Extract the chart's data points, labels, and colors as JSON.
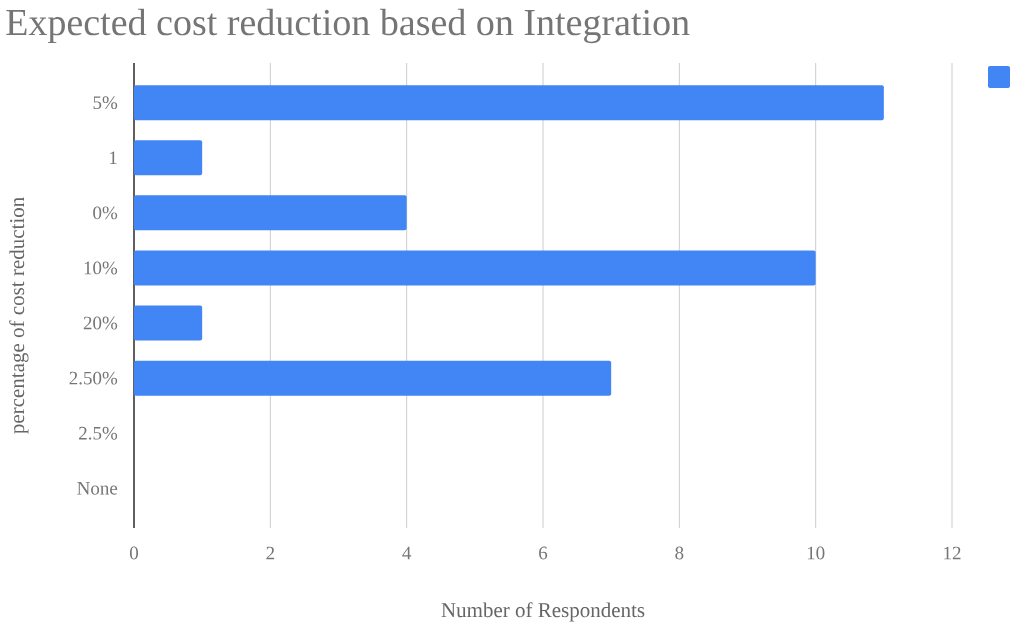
{
  "chart_data": {
    "type": "bar",
    "orientation": "horizontal",
    "title": "Expected cost reduction based on Integration",
    "xlabel": "Number of Respondents",
    "ylabel": "percentage of cost reduction",
    "categories": [
      "5%",
      "1",
      "0%",
      "10%",
      "20%",
      "2.50%",
      "2.5%",
      "None"
    ],
    "series": [
      {
        "color": "#4285f4",
        "values": [
          11,
          1,
          4,
          10,
          1,
          7,
          0,
          0
        ]
      }
    ],
    "xlim": [
      0,
      12
    ],
    "xticks": [
      0,
      2,
      4,
      6,
      8,
      10,
      12
    ],
    "grid": "x"
  }
}
